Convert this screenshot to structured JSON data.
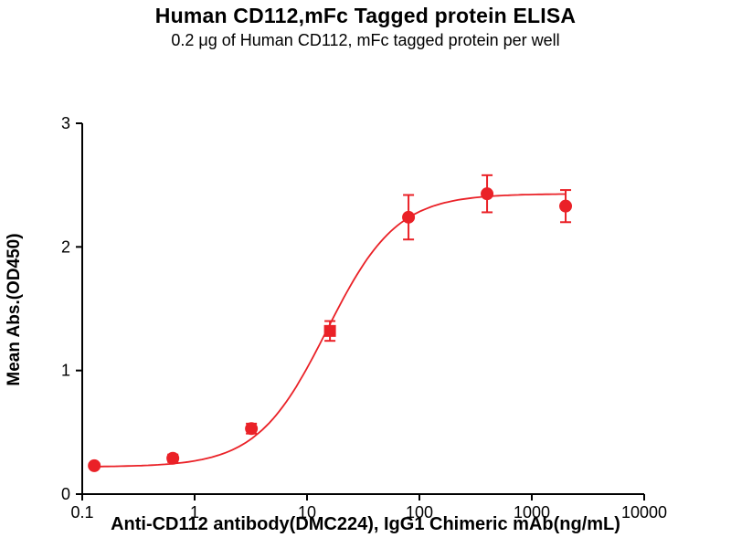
{
  "chart_data": {
    "type": "scatter",
    "title": "Human CD112,mFc Tagged protein ELISA",
    "subtitle": "0.2 μg of Human CD112, mFc tagged protein per well",
    "xlabel": "Anti-CD112 antibody(DMC224), IgG1 Chimeric mAb(ng/mL)",
    "ylabel": "Mean Abs.(OD450)",
    "x_scale": "log",
    "xlim": [
      0.1,
      10000
    ],
    "ylim": [
      0,
      3
    ],
    "x_ticks": [
      0.1,
      1,
      10,
      100,
      1000,
      10000
    ],
    "x_tick_labels": [
      "0.1",
      "1",
      "10",
      "100",
      "1000",
      "10000"
    ],
    "y_ticks": [
      0,
      1,
      2,
      3
    ],
    "y_tick_labels": [
      "0",
      "1",
      "2",
      "3"
    ],
    "grid": false,
    "legend": false,
    "accent_color": "#ea2127",
    "axis_color": "#000000",
    "series": [
      {
        "name": "Human CD112, mFc tagged protein",
        "color": "#ea2127",
        "x": [
          0.128,
          0.64,
          3.2,
          16,
          80,
          400,
          2000
        ],
        "y": [
          0.23,
          0.29,
          0.53,
          1.32,
          2.24,
          2.43,
          2.33
        ],
        "y_err": [
          0.02,
          0.03,
          0.04,
          0.08,
          0.18,
          0.15,
          0.13
        ],
        "markers": [
          "circle",
          "circle",
          "circle",
          "square",
          "circle",
          "circle",
          "circle"
        ]
      }
    ],
    "fit": {
      "model": "4PL",
      "bottom": 0.22,
      "top": 2.43,
      "ec50": 15,
      "hill": 1.4
    }
  }
}
